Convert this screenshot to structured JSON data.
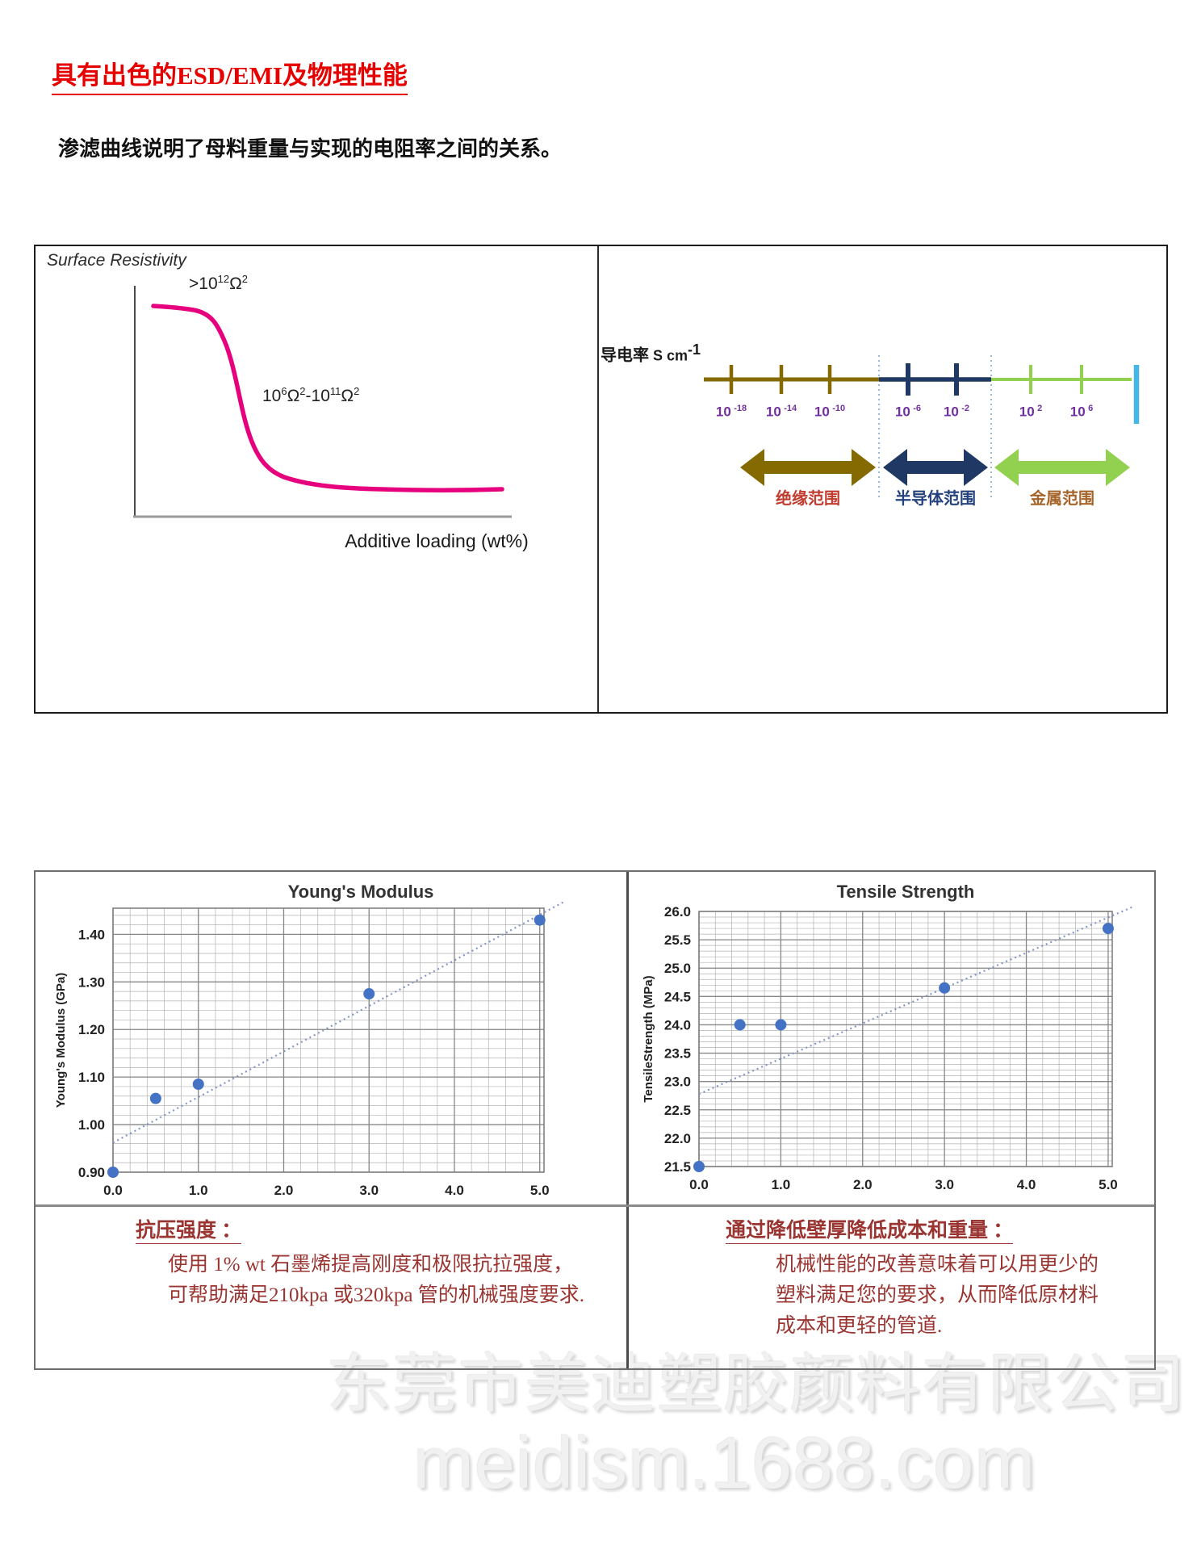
{
  "page": {
    "title": "具有出色的ESD/EMI及物理性能",
    "intro": "渗滤曲线说明了母料重量与实现的电阻率之间的关系。"
  },
  "colors": {
    "title_red": "#e60000",
    "note_red": "#9a3532",
    "curve_pink": "#e6007e",
    "insulator": "#846a00",
    "semiconductor": "#1f3864",
    "metal": "#92d050",
    "endbar_cyan": "#45b6e8",
    "tick_purple": "#7030a0",
    "label_insulator": "#c03a2e",
    "label_semiconductor": "#24427c",
    "label_metal": "#a5652a",
    "point_blue": "#4472c4",
    "trend_blue": "#8496c8"
  },
  "resistivity": {
    "panel_title": "Surface Resistivity",
    "xlabel": "Additive loading (wt%)",
    "label_high": {
      "p1": ">10",
      "s1": "12",
      "p2": "Ω",
      "s2": "2"
    },
    "label_range": {
      "b1": "10",
      "e1": "6",
      "b2": "Ω",
      "e2": "2",
      "b3": "-10",
      "e3": "11",
      "b4": "Ω",
      "e4": "2"
    }
  },
  "conductivity": {
    "axis_label": {
      "cjk": "导电率 ",
      "unit": "S cm",
      "sup": "-1"
    },
    "ticks": [
      {
        "b": "10",
        "e": "-18"
      },
      {
        "b": "10",
        "e": "-14"
      },
      {
        "b": "10",
        "e": "-10"
      },
      {
        "b": "10",
        "e": "-6"
      },
      {
        "b": "10",
        "e": "-2"
      },
      {
        "b": "10",
        "e": "2"
      },
      {
        "b": "10",
        "e": "6"
      }
    ],
    "range_labels": [
      "绝缘范围",
      "半导体范围",
      "金属范围"
    ]
  },
  "notes": {
    "left": {
      "heading": "抗压强度 ：",
      "lines": [
        "使用 1% wt 石墨烯提高刚度和极限抗拉强度，",
        "可帮助满足210kpa 或320kpa 管的机械强度要求."
      ]
    },
    "right": {
      "heading": "通过降低壁厚降低成本和重量 ：",
      "lines": [
        "机械性能的改善意味着可以用更少的",
        "塑料满足您的要求，从而降低原材料",
        "成本和更轻的管道."
      ]
    }
  },
  "watermark": {
    "line1": "东莞市美迪塑胶颜料有限公司",
    "line2": "meidism.1688.com"
  },
  "chart_data": [
    {
      "id": "surface_resistivity",
      "type": "line",
      "title": "Surface Resistivity",
      "xlabel": "Additive loading (wt%)",
      "ylabel": "",
      "annotations": [
        ">10^12 Ω^2",
        "10^6 Ω^2 - 10^11 Ω^2"
      ],
      "description": "Percolation curve: surface resistivity stays above 10^12 ohm-sq at low additive loading, drops steeply at the percolation threshold, then plateaus in the 10^6 to 10^11 ohm-sq range as additive loading (wt%) increases.",
      "axis_ticks": "none"
    },
    {
      "id": "youngs_modulus",
      "type": "scatter",
      "title": "Young's Modulus",
      "xlabel": "",
      "ylabel": "Young's Modulus (GPa)",
      "x": [
        0.0,
        0.5,
        1.0,
        3.0,
        5.0
      ],
      "y": [
        0.9,
        1.055,
        1.085,
        1.275,
        1.43
      ],
      "xtick_labels": [
        "0.0",
        "1.0",
        "2.0",
        "3.0",
        "4.0",
        "5.0"
      ],
      "ytick_labels": [
        "0.90",
        "1.00",
        "1.10",
        "1.20",
        "1.30",
        "1.40"
      ],
      "xlim": [
        0,
        5.05
      ],
      "ylim": [
        0.9,
        1.455
      ],
      "minor_x": 0.2,
      "minor_y": 0.02,
      "grid": true,
      "legend": false,
      "trend": [
        [
          0,
          0.962
        ],
        [
          5.3,
          1.47
        ]
      ]
    },
    {
      "id": "tensile_strength",
      "type": "scatter",
      "title": "Tensile Strength",
      "xlabel": "",
      "ylabel": "TensileStrength (MPa)",
      "x": [
        0.0,
        0.5,
        1.0,
        3.0,
        5.0
      ],
      "y": [
        21.5,
        24.0,
        24.0,
        24.65,
        25.7
      ],
      "xtick_labels": [
        "0.0",
        "1.0",
        "2.0",
        "3.0",
        "4.0",
        "5.0"
      ],
      "ytick_labels": [
        "21.5",
        "22.0",
        "22.5",
        "23.0",
        "23.5",
        "24.0",
        "24.5",
        "25.0",
        "25.5",
        "26.0"
      ],
      "xlim": [
        0,
        5.05
      ],
      "ylim": [
        21.5,
        26.0
      ],
      "minor_x": 0.2,
      "minor_y": 0.1,
      "grid": true,
      "legend": false,
      "trend": [
        [
          0,
          22.78
        ],
        [
          5.3,
          26.08
        ]
      ]
    }
  ]
}
